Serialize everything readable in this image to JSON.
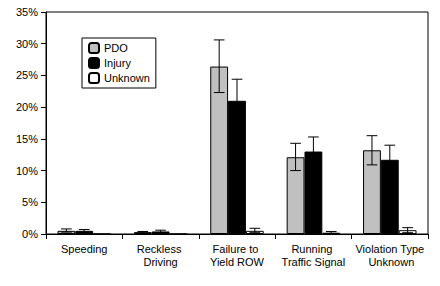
{
  "chart_data": {
    "type": "bar",
    "categories": [
      "Speeding",
      "Reckless Driving",
      "Failure to Yield ROW",
      "Running Traffic Signal",
      "Violation Type Unknown"
    ],
    "series": [
      {
        "name": "PDO",
        "color": "#c0c0c0",
        "values": [
          0.5,
          0.3,
          26.4,
          12.1,
          13.2
        ],
        "errors": [
          [
            0.3,
            0.8
          ],
          [
            0.1,
            0.4
          ],
          [
            22.3,
            30.6
          ],
          [
            10.0,
            14.3
          ],
          [
            10.9,
            15.5
          ]
        ]
      },
      {
        "name": "Injury",
        "color": "#000000",
        "values": [
          0.5,
          0.4,
          21.0,
          13.0,
          11.7
        ],
        "errors": [
          [
            0.2,
            0.7
          ],
          [
            0.2,
            0.6
          ],
          [
            17.6,
            24.4
          ],
          [
            10.8,
            15.3
          ],
          [
            9.6,
            14.0
          ]
        ]
      },
      {
        "name": "Unknown",
        "color": "#ffffff",
        "values": [
          0,
          0,
          0.5,
          0.2,
          0.6
        ],
        "errors": [
          null,
          null,
          [
            0.2,
            0.9
          ],
          [
            0.1,
            0.4
          ],
          [
            0.2,
            1.0
          ]
        ]
      }
    ],
    "ylim": [
      0,
      35
    ],
    "yticks": [
      {
        "value": 0,
        "label": "0%"
      },
      {
        "value": 5,
        "label": "5%"
      },
      {
        "value": 10,
        "label": "10%"
      },
      {
        "value": 15,
        "label": "15%"
      },
      {
        "value": 20,
        "label": "20%"
      },
      {
        "value": 25,
        "label": "25%"
      },
      {
        "value": 30,
        "label": "30%"
      },
      {
        "value": 35,
        "label": "35%"
      }
    ],
    "grid": false,
    "legend": "upper left"
  }
}
